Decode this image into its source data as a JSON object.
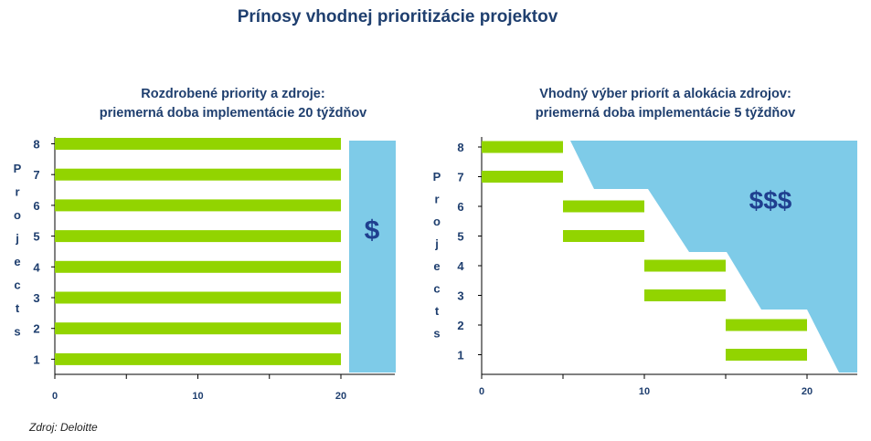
{
  "title": "Prínosy vhodnej prioritizácie projektov",
  "source": "Zdroj: Deloitte",
  "colors": {
    "bar": "#92d400",
    "area": "#7ecbe8",
    "text": "#1f3f6f",
    "axis": "#000000"
  },
  "chart_data": [
    {
      "type": "bar",
      "orientation": "horizontal",
      "title_lines": [
        "Rozdrobené priority  a zdroje:",
        "priemerná  doba implementácie 20 týždňov"
      ],
      "ylabel": "Projects",
      "y_categories": [
        "1",
        "2",
        "3",
        "4",
        "5",
        "6",
        "7",
        "8"
      ],
      "x_ticks": [
        0,
        10,
        20
      ],
      "xlim": [
        0,
        24
      ],
      "bars": [
        {
          "project": "8",
          "start": 0,
          "end": 20
        },
        {
          "project": "7",
          "start": 0,
          "end": 20
        },
        {
          "project": "6",
          "start": 0,
          "end": 20
        },
        {
          "project": "5",
          "start": 0,
          "end": 20
        },
        {
          "project": "4",
          "start": 0,
          "end": 20
        },
        {
          "project": "3",
          "start": 0,
          "end": 20
        },
        {
          "project": "2",
          "start": 0,
          "end": 20
        },
        {
          "project": "1",
          "start": 0,
          "end": 20
        }
      ],
      "benefit_label": "$"
    },
    {
      "type": "bar",
      "orientation": "horizontal",
      "title_lines": [
        "Vhodný výber priorít  a alokácia zdrojov:",
        "priemerná  doba implementácie 5 týždňov"
      ],
      "ylabel": "Projects",
      "y_categories": [
        "1",
        "2",
        "3",
        "4",
        "5",
        "6",
        "7",
        "8"
      ],
      "x_ticks": [
        0,
        10,
        20
      ],
      "xlim": [
        0,
        23
      ],
      "bars": [
        {
          "project": "8",
          "start": 0,
          "end": 5
        },
        {
          "project": "7",
          "start": 0,
          "end": 5
        },
        {
          "project": "6",
          "start": 5,
          "end": 10
        },
        {
          "project": "5",
          "start": 5,
          "end": 10
        },
        {
          "project": "4",
          "start": 10,
          "end": 15
        },
        {
          "project": "3",
          "start": 10,
          "end": 15
        },
        {
          "project": "2",
          "start": 15,
          "end": 20
        },
        {
          "project": "1",
          "start": 15,
          "end": 20
        }
      ],
      "benefit_label": "$$$"
    }
  ]
}
